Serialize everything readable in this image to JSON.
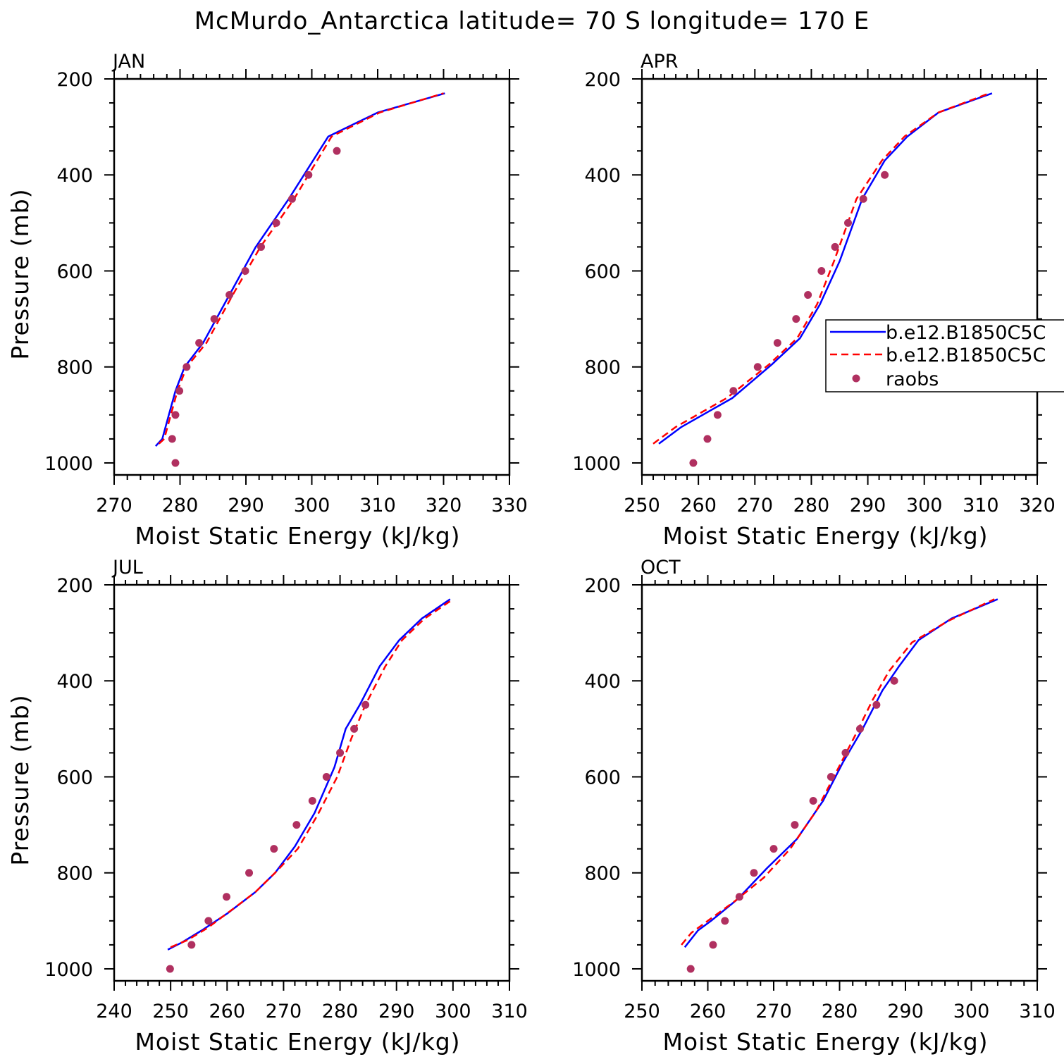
{
  "title": "McMurdo_Antarctica  latitude= 70 S longitude= 170 E",
  "colors": {
    "model1": "#0000ff",
    "model2": "#ff0000",
    "raobs": "#b03060",
    "axes": "#000000"
  },
  "legend": {
    "entries": [
      "b.e12.B1850C5C",
      "b.e12.B1850C5C",
      "raobs"
    ],
    "placement": "right of APR panel"
  },
  "chart_data": [
    {
      "type": "line",
      "panel": "JAN",
      "xlabel": "Moist Static Energy (kJ/kg)",
      "ylabel": "Pressure (mb)",
      "xlim": [
        270,
        330
      ],
      "xticks": [
        270,
        280,
        290,
        300,
        310,
        320,
        330
      ],
      "ylim": [
        1025,
        200
      ],
      "yticks": [
        200,
        400,
        600,
        800,
        1000
      ],
      "series": [
        {
          "style": "solid",
          "x": [
            276.3,
            277.3,
            278.3,
            279.3,
            280.7,
            283.5,
            287.5,
            291.5,
            296.5,
            302.5,
            310.0,
            320.2
          ],
          "y": [
            965,
            950,
            900,
            850,
            800,
            750,
            650,
            550,
            450,
            320,
            270,
            230
          ]
        },
        {
          "style": "dashed",
          "x": [
            276.8,
            277.6,
            278.6,
            279.6,
            281.0,
            284.0,
            288.0,
            292.2,
            297.3,
            303.0,
            310.3,
            320.0
          ],
          "y": [
            960,
            950,
            900,
            850,
            800,
            750,
            650,
            550,
            450,
            320,
            270,
            230
          ]
        },
        {
          "style": "points",
          "x": [
            279.3,
            278.8,
            279.3,
            279.9,
            281.0,
            282.9,
            285.2,
            287.5,
            289.9,
            292.3,
            294.6,
            297.0,
            299.5,
            303.8
          ],
          "y": [
            1000,
            950,
            900,
            850,
            800,
            750,
            700,
            650,
            600,
            550,
            500,
            450,
            400,
            350
          ]
        }
      ]
    },
    {
      "type": "line",
      "panel": "APR",
      "xlabel": "Moist Static Energy (kJ/kg)",
      "ylabel": "",
      "xlim": [
        250,
        320
      ],
      "xticks": [
        250,
        260,
        270,
        280,
        290,
        300,
        310,
        320
      ],
      "ylim": [
        1025,
        200
      ],
      "yticks": [
        200,
        400,
        600,
        800,
        1000
      ],
      "series": [
        {
          "style": "solid",
          "x": [
            253.0,
            257.0,
            266.0,
            273.0,
            278.0,
            281.5,
            285.0,
            289.0,
            293.0,
            297.0,
            302.5,
            312.0
          ],
          "y": [
            960,
            925,
            865,
            795,
            740,
            670,
            580,
            450,
            370,
            320,
            270,
            230
          ]
        },
        {
          "style": "dashed",
          "x": [
            252.0,
            256.0,
            265.0,
            272.5,
            277.5,
            281.0,
            284.0,
            288.0,
            292.5,
            296.5,
            302.5,
            311.5
          ],
          "y": [
            960,
            925,
            865,
            795,
            740,
            670,
            580,
            450,
            370,
            320,
            270,
            230
          ]
        },
        {
          "style": "points",
          "x": [
            259.1,
            261.6,
            263.4,
            266.2,
            270.5,
            274.0,
            277.3,
            279.4,
            281.8,
            284.2,
            286.5,
            289.2,
            293.0
          ],
          "y": [
            1000,
            950,
            900,
            850,
            800,
            750,
            700,
            650,
            600,
            550,
            500,
            450,
            400
          ]
        }
      ]
    },
    {
      "type": "line",
      "panel": "JUL",
      "xlabel": "Moist Static Energy (kJ/kg)",
      "ylabel": "Pressure (mb)",
      "xlim": [
        240,
        310
      ],
      "xticks": [
        240,
        250,
        260,
        270,
        280,
        290,
        300,
        310
      ],
      "ylim": [
        1025,
        200
      ],
      "yticks": [
        200,
        400,
        600,
        800,
        1000
      ],
      "series": [
        {
          "style": "solid",
          "x": [
            249.5,
            252.0,
            255.5,
            260.0,
            265.0,
            268.5,
            272.0,
            275.5,
            279.0,
            281.0,
            283.5,
            287.0,
            290.5,
            294.5,
            299.5
          ],
          "y": [
            960,
            945,
            920,
            885,
            840,
            800,
            745,
            675,
            580,
            500,
            450,
            370,
            315,
            270,
            230
          ]
        },
        {
          "style": "dashed",
          "x": [
            250.0,
            253.0,
            256.5,
            260.5,
            265.0,
            268.5,
            272.5,
            276.0,
            279.5,
            282.0,
            284.5,
            288.0,
            291.0,
            295.0,
            300.0
          ],
          "y": [
            955,
            940,
            915,
            880,
            840,
            800,
            750,
            680,
            600,
            520,
            450,
            370,
            315,
            270,
            230
          ]
        },
        {
          "style": "points",
          "x": [
            249.9,
            253.7,
            256.7,
            259.9,
            263.9,
            268.3,
            272.3,
            275.1,
            277.6,
            280.0,
            282.5,
            284.5
          ],
          "y": [
            1000,
            950,
            900,
            850,
            800,
            750,
            700,
            650,
            600,
            550,
            500,
            450
          ]
        }
      ]
    },
    {
      "type": "line",
      "panel": "OCT",
      "xlabel": "Moist Static Energy (kJ/kg)",
      "ylabel": "",
      "xlim": [
        250,
        310
      ],
      "xticks": [
        250,
        260,
        270,
        280,
        290,
        300,
        310
      ],
      "ylim": [
        1025,
        200
      ],
      "yticks": [
        200,
        400,
        600,
        800,
        1000
      ],
      "series": [
        {
          "style": "solid",
          "x": [
            256.5,
            258.5,
            260.5,
            264.5,
            269.0,
            273.5,
            277.5,
            280.5,
            283.5,
            286.5,
            289.0,
            292.0,
            297.0,
            304.0
          ],
          "y": [
            955,
            920,
            900,
            855,
            790,
            730,
            650,
            570,
            500,
            420,
            370,
            315,
            270,
            230
          ]
        },
        {
          "style": "dashed",
          "x": [
            256.0,
            257.5,
            260.0,
            264.0,
            268.5,
            272.5,
            276.5,
            279.5,
            282.5,
            285.0,
            287.5,
            291.0,
            296.5,
            303.5
          ],
          "y": [
            950,
            925,
            900,
            860,
            810,
            750,
            670,
            590,
            510,
            440,
            380,
            320,
            275,
            230
          ]
        },
        {
          "style": "points",
          "x": [
            257.4,
            260.8,
            262.6,
            264.8,
            267.0,
            270.0,
            273.2,
            276.0,
            278.7,
            280.9,
            283.1,
            285.6,
            288.3
          ],
          "y": [
            1000,
            950,
            900,
            850,
            800,
            750,
            700,
            650,
            600,
            550,
            500,
            450,
            400
          ]
        }
      ]
    }
  ]
}
